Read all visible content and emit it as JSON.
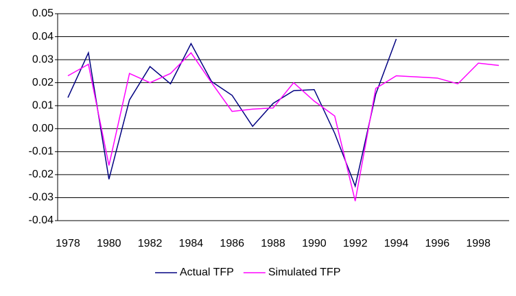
{
  "chart_data": {
    "type": "line",
    "categories": [
      "1978",
      null,
      "1980",
      null,
      "1982",
      null,
      "1984",
      null,
      "1986",
      null,
      "1988",
      null,
      "1990",
      null,
      "1992",
      null,
      "1994",
      null,
      "1996",
      null,
      "1998",
      null
    ],
    "series": [
      {
        "name": "Actual TFP",
        "color": "#000080",
        "values": [
          0.0135,
          0.033,
          -0.022,
          0.0125,
          0.027,
          0.0195,
          0.037,
          0.0205,
          0.0145,
          0.001,
          0.011,
          0.0165,
          0.017,
          -0.002,
          -0.025,
          0.015,
          0.039,
          null,
          null,
          null,
          null,
          null
        ]
      },
      {
        "name": "Simulated TFP",
        "color": "#ff00ff",
        "values": [
          0.023,
          0.028,
          -0.016,
          0.024,
          0.02,
          0.024,
          0.033,
          0.02,
          0.0075,
          0.0085,
          0.009,
          0.02,
          0.012,
          0.0055,
          -0.0315,
          0.0175,
          0.023,
          0.0225,
          0.022,
          0.0195,
          0.0285,
          0.0275
        ]
      }
    ],
    "ylim": [
      -0.04,
      0.05
    ],
    "yticks": [
      -0.04,
      -0.03,
      -0.02,
      -0.01,
      {
        "value": 0,
        "label": "0.00"
      },
      0.01,
      0.02,
      0.03,
      0.04,
      0.05
    ],
    "grid": true,
    "legend": "bottom"
  }
}
